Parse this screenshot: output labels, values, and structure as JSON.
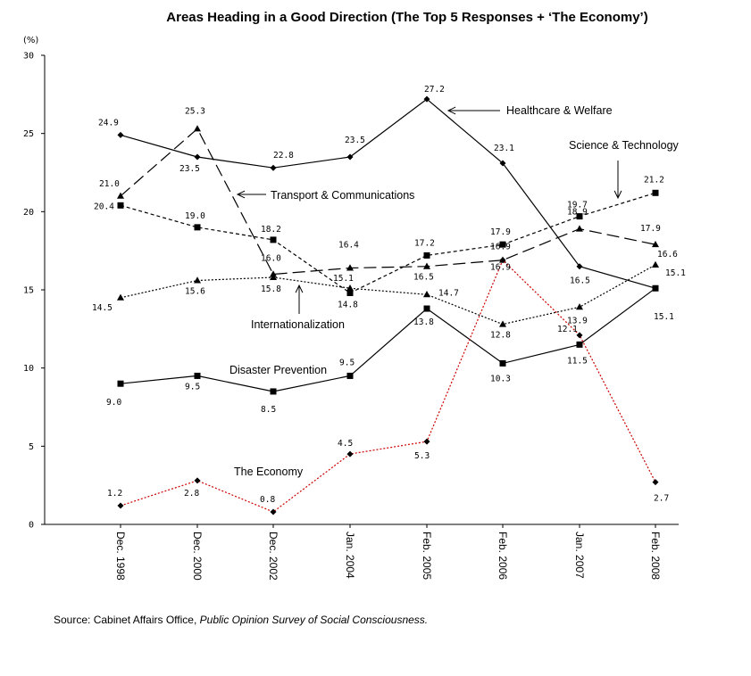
{
  "chart_data": {
    "type": "line",
    "title": "Areas Heading in a Good Direction (The Top 5 Responses + ‘The Economy’)",
    "unit_label": "(%)",
    "ylim": [
      0,
      30
    ],
    "yticks": [
      "0",
      "5",
      "10",
      "15",
      "20",
      "25",
      "30"
    ],
    "categories": [
      "Dec. 1998",
      "Dec. 2000",
      "Dec. 2002",
      "Jan. 2004",
      "Feb. 2005",
      "Feb. 2006",
      "Jan. 2007",
      "Feb. 2008"
    ],
    "grid": false,
    "series": [
      {
        "name": "Healthcare & Welfare",
        "values": [
          24.9,
          23.5,
          22.8,
          23.5,
          27.2,
          23.1,
          16.5,
          15.1
        ],
        "labels": [
          "24.9",
          "23.5",
          "22.8",
          "23.5",
          "27.2",
          "23.1",
          "16.5",
          "15.1"
        ],
        "marker": "diamond",
        "dash": "solid",
        "color": "#000000"
      },
      {
        "name": "Transport & Communications",
        "values": [
          21.0,
          25.3,
          16.0,
          16.4,
          16.5,
          16.9,
          18.9,
          17.9
        ],
        "labels": [
          "21.0",
          "25.3",
          "16.0",
          "16.4",
          "16.5",
          "16.9",
          "18.9",
          "17.9"
        ],
        "marker": "triangle",
        "dash": "long",
        "color": "#000000"
      },
      {
        "name": "Science & Technology",
        "values": [
          20.4,
          19.0,
          18.2,
          14.8,
          17.2,
          17.9,
          19.7,
          21.2
        ],
        "labels": [
          "20.4",
          "19.0",
          "18.2",
          "14.8",
          "17.2",
          "17.9",
          "19.7",
          "21.2"
        ],
        "marker": "square",
        "dash": "short",
        "color": "#000000"
      },
      {
        "name": "Internationalization",
        "values": [
          14.5,
          15.6,
          15.8,
          15.1,
          14.7,
          12.8,
          13.9,
          16.6
        ],
        "labels": [
          "14.5",
          "15.6",
          "15.8",
          "15.1",
          "14.7",
          "12.8",
          "13.9",
          "16.6"
        ],
        "marker": "triangle",
        "dash": "dot",
        "color": "#000000"
      },
      {
        "name": "Disaster Prevention",
        "values": [
          9.0,
          9.5,
          8.5,
          9.5,
          13.8,
          10.3,
          11.5,
          15.1
        ],
        "labels": [
          "9.0",
          "9.5",
          "8.5",
          "9.5",
          "13.8",
          "10.3",
          "11.5",
          "15.1"
        ],
        "marker": "square",
        "dash": "solid",
        "color": "#000000"
      },
      {
        "name": "The Economy",
        "values": [
          1.2,
          2.8,
          0.8,
          4.5,
          5.3,
          16.9,
          12.1,
          2.7
        ],
        "labels": [
          "1.2",
          "2.8",
          "0.8",
          "4.5",
          "5.3",
          "16.9",
          "12.1",
          "2.7"
        ],
        "marker": "diamond",
        "dash": "red-dot",
        "color": "#cc0000"
      }
    ],
    "annotations": [
      "Healthcare & Welfare",
      "Science & Technology",
      "Transport & Communications",
      "Internationalization",
      "Disaster Prevention",
      "The Economy"
    ]
  },
  "source": {
    "prefix": "Source: Cabinet Affairs Office,",
    "italic": "Public Opinion Survey of Social Consciousness."
  }
}
